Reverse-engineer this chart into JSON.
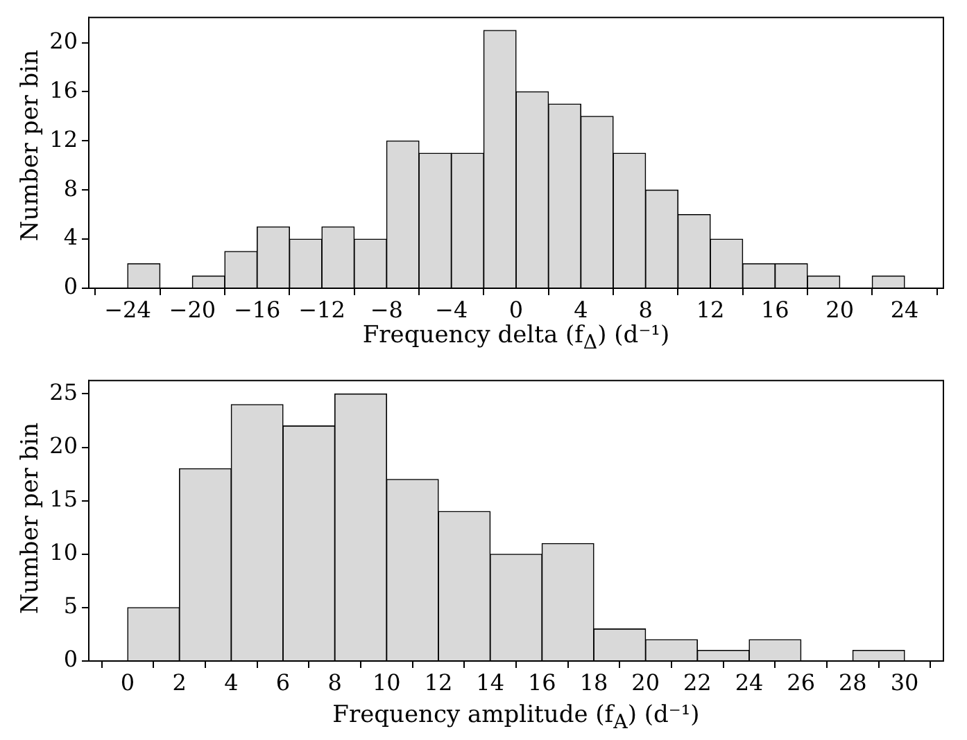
{
  "chart_data": [
    {
      "type": "histogram",
      "xlabel": "Frequency delta (f$_{Δ}$) (d⁻¹)",
      "ylabel": "Number per bin",
      "color": "#d9d9d9",
      "bins": [
        -24,
        -22,
        -20,
        -18,
        -16,
        -14,
        -12,
        -10,
        -8,
        -6,
        -4,
        -2,
        0,
        2,
        4,
        6,
        8,
        10,
        12,
        14,
        16,
        18,
        20,
        22,
        24
      ],
      "values": [
        2,
        0,
        1,
        3,
        5,
        4,
        5,
        4,
        12,
        11,
        11,
        21,
        16,
        15,
        14,
        11,
        8,
        6,
        4,
        2,
        2,
        1,
        0,
        1
      ],
      "xlim": [
        -26.4,
        26.4
      ],
      "ylim": [
        0,
        22.05
      ],
      "xticks": [
        {
          "value": -24,
          "label": "−24"
        },
        {
          "value": -20,
          "label": "−20"
        },
        {
          "value": -16,
          "label": "−16"
        },
        {
          "value": -12,
          "label": "−12"
        },
        {
          "value": -8,
          "label": "−8"
        },
        {
          "value": -4,
          "label": "−4"
        },
        0,
        4,
        8,
        12,
        16,
        20,
        24
      ],
      "yticks": [
        0,
        4,
        8,
        12,
        16,
        20
      ],
      "grid": false,
      "legend": false
    },
    {
      "type": "histogram",
      "xlabel": "Frequency amplitude (f$_{A}$) (d⁻¹)",
      "ylabel": "Number per bin",
      "color": "#d9d9d9",
      "bins": [
        0,
        2,
        4,
        6,
        8,
        10,
        12,
        14,
        16,
        18,
        20,
        22,
        24,
        26,
        28,
        30
      ],
      "values": [
        5,
        18,
        24,
        22,
        25,
        17,
        14,
        10,
        11,
        3,
        2,
        1,
        2,
        0,
        1
      ],
      "xlim": [
        -1.5,
        31.5
      ],
      "ylim": [
        0,
        26.25
      ],
      "xticks": [
        0,
        2,
        4,
        6,
        8,
        10,
        12,
        14,
        16,
        18,
        20,
        22,
        24,
        26,
        28,
        30
      ],
      "yticks": [
        0,
        5,
        10,
        15,
        20,
        25
      ],
      "grid": false,
      "legend": false
    }
  ]
}
